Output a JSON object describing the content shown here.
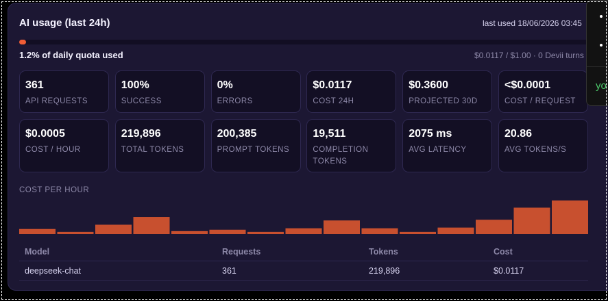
{
  "header": {
    "title": "AI usage (last 24h)",
    "last_used": "last used 18/06/2026 03:45"
  },
  "quota": {
    "fraction": 0.012,
    "label": "1.2% of daily quota used",
    "detail": "$0.0117 / $1.00 · 0 Devii turns"
  },
  "stats": [
    {
      "value": "361",
      "label": "API REQUESTS"
    },
    {
      "value": "100%",
      "label": "SUCCESS"
    },
    {
      "value": "0%",
      "label": "ERRORS"
    },
    {
      "value": "$0.0117",
      "label": "COST 24H"
    },
    {
      "value": "$0.3600",
      "label": "PROJECTED 30D"
    },
    {
      "value": "<$0.0001",
      "label": "COST / REQUEST"
    },
    {
      "value": "$0.0005",
      "label": "COST / HOUR"
    },
    {
      "value": "219,896",
      "label": "TOTAL TOKENS"
    },
    {
      "value": "200,385",
      "label": "PROMPT TOKENS"
    },
    {
      "value": "19,511",
      "label": "COMPLETION TOKENS"
    },
    {
      "value": "2075 ms",
      "label": "AVG LATENCY"
    },
    {
      "value": "20.86",
      "label": "AVG TOKENS/S"
    }
  ],
  "chart_data": {
    "type": "bar",
    "title": "COST PER HOUR",
    "values": [
      7,
      3,
      13,
      24,
      4,
      6,
      3,
      8,
      19,
      8,
      3,
      9,
      20,
      37,
      47
    ],
    "ylim": [
      0,
      50
    ],
    "color": "#c8502f"
  },
  "table": {
    "headers": [
      "Model",
      "Requests",
      "Tokens",
      "Cost"
    ],
    "rows": [
      [
        "deepseek-chat",
        "361",
        "219,896",
        "$0.0117"
      ]
    ]
  },
  "toast": {
    "text": "yo",
    "color": "#4cc86a"
  }
}
